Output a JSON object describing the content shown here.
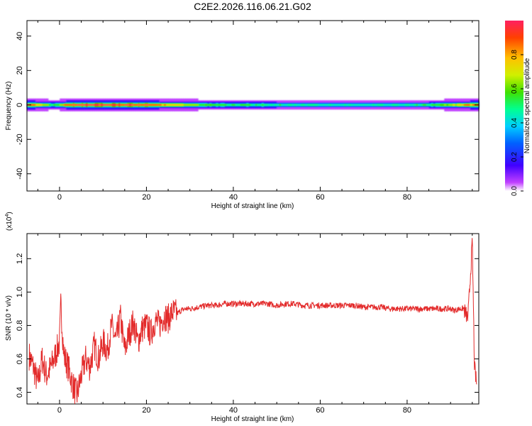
{
  "title": "C2E2.2026.116.06.21.G02",
  "colors": {
    "line": "#e32b2b",
    "axis": "#000000",
    "background": "#ffffff"
  },
  "chart_data": [
    {
      "type": "heatmap",
      "xlabel": "Height of straight line (km)",
      "ylabel": "Frequency (Hz)",
      "xlim": [
        -7.5,
        96.5
      ],
      "ylim": [
        -50,
        49
      ],
      "x_ticks": [
        "0",
        "20",
        "40",
        "60",
        "80"
      ],
      "y_ticks": [
        "-40",
        "-20",
        "0",
        "20",
        "40"
      ],
      "x_tick_values": [
        0,
        20,
        40,
        60,
        80
      ],
      "y_tick_values": [
        -40,
        -20,
        0,
        20,
        40
      ],
      "colorbar": {
        "label": "Normalized spectral amplitude",
        "range": [
          0,
          1
        ],
        "ticks": [
          "0.0",
          "0.2",
          "0.4",
          "0.6",
          "0.8"
        ],
        "tick_values": [
          0,
          0.2,
          0.4,
          0.6,
          0.8
        ],
        "colormap": [
          "#ffffff",
          "#c040ff",
          "#4000ff",
          "#0060ff",
          "#00d0ff",
          "#00ff90",
          "#40e000",
          "#d0f000",
          "#ffc000",
          "#ff4000",
          "#ff2060"
        ]
      },
      "band": {
        "center_hz": 0,
        "description_points": [
          {
            "x": -7,
            "amp": 0.95
          },
          {
            "x": -1,
            "amp": 0.5
          },
          {
            "x": 2,
            "amp": 0.9
          },
          {
            "x": 5,
            "amp": 0.95
          },
          {
            "x": 10,
            "amp": 0.95
          },
          {
            "x": 20,
            "amp": 0.9
          },
          {
            "x": 27,
            "amp": 0.75
          },
          {
            "x": 35,
            "amp": 0.55
          },
          {
            "x": 50,
            "amp": 0.5
          },
          {
            "x": 70,
            "amp": 0.45
          },
          {
            "x": 85,
            "amp": 0.5
          },
          {
            "x": 92,
            "amp": 0.75
          },
          {
            "x": 95,
            "amp": 0.85
          }
        ]
      }
    },
    {
      "type": "line",
      "xlabel": "Height of straight line (km)",
      "ylabel": "SNR (10 * v/v)",
      "y_multiplier_label": "(x10",
      "y_multiplier_exp": "4",
      "y_multiplier_close": ")",
      "xlim": [
        -7.5,
        96.5
      ],
      "ylim": [
        0.33,
        1.35
      ],
      "x_ticks": [
        "0",
        "20",
        "40",
        "60",
        "80"
      ],
      "y_ticks": [
        "0.4",
        "0.6",
        "0.8",
        "1.0",
        "1.2"
      ],
      "x_tick_values": [
        0,
        20,
        40,
        60,
        80
      ],
      "y_tick_values": [
        0.4,
        0.6,
        0.8,
        1.0,
        1.2
      ],
      "series": [
        {
          "x": [
            -7,
            -6,
            -5,
            -4,
            -3,
            -2,
            -1,
            0,
            0.3,
            1,
            2,
            3,
            4,
            5,
            6,
            7,
            8,
            9,
            10,
            11,
            12,
            13,
            14,
            15,
            16,
            17,
            18,
            19,
            20,
            21,
            22,
            23,
            24,
            25,
            26,
            27,
            28,
            29,
            30,
            32,
            34,
            36,
            38,
            40,
            42,
            44,
            46,
            48,
            50,
            52,
            54,
            56,
            58,
            60,
            62,
            64,
            66,
            68,
            70,
            72,
            74,
            76,
            78,
            80,
            82,
            84,
            86,
            88,
            90,
            91,
            92,
            93,
            94,
            95,
            95.5,
            96
          ],
          "y": [
            0.62,
            0.55,
            0.45,
            0.6,
            0.5,
            0.55,
            0.62,
            0.7,
            0.93,
            0.62,
            0.55,
            0.45,
            0.38,
            0.5,
            0.6,
            0.55,
            0.68,
            0.6,
            0.7,
            0.65,
            0.8,
            0.7,
            0.85,
            0.65,
            0.75,
            0.82,
            0.7,
            0.78,
            0.8,
            0.75,
            0.83,
            0.8,
            0.86,
            0.84,
            0.88,
            0.87,
            0.89,
            0.9,
            0.9,
            0.91,
            0.92,
            0.92,
            0.93,
            0.93,
            0.93,
            0.93,
            0.93,
            0.93,
            0.92,
            0.93,
            0.93,
            0.92,
            0.92,
            0.92,
            0.92,
            0.92,
            0.92,
            0.92,
            0.91,
            0.91,
            0.91,
            0.9,
            0.9,
            0.9,
            0.9,
            0.9,
            0.9,
            0.9,
            0.9,
            0.89,
            0.9,
            0.9,
            0.84,
            1.3,
            0.55,
            0.45
          ]
        }
      ]
    }
  ]
}
